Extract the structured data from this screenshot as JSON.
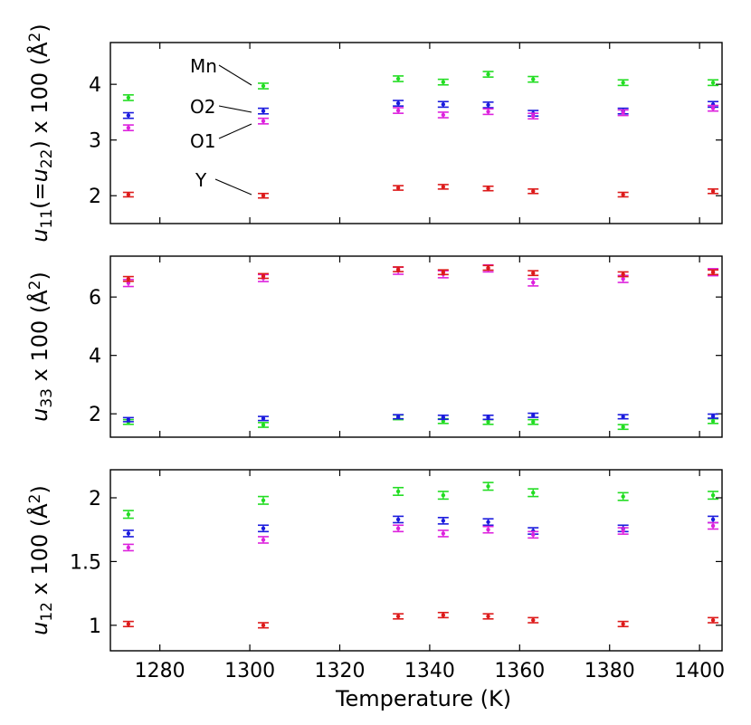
{
  "chart_data": {
    "type": "scatter",
    "shared_x": {
      "label": "Temperature (K)",
      "lim": [
        1269,
        1405
      ],
      "ticks": [
        1280,
        1300,
        1320,
        1340,
        1360,
        1380,
        1400
      ],
      "tick_labels": [
        "1280",
        "1300",
        "1320",
        "1340",
        "1360",
        "1380",
        "1400"
      ]
    },
    "x": [
      1273,
      1303,
      1333,
      1343,
      1353,
      1363,
      1383,
      1403
    ],
    "panels": [
      {
        "ylabel": {
          "base": "u",
          "sub1": "11",
          "mid": "(=",
          "base2": "u",
          "sub2": "22",
          "tail": ") x 100 (Å",
          "sup": "2",
          "end": ")"
        },
        "ylim": [
          1.5,
          4.75
        ],
        "yticks": [
          2,
          3,
          4
        ],
        "ytick_labels": [
          "2",
          "3",
          "4"
        ],
        "series": [
          {
            "name": "Mn",
            "color": "#22dd22",
            "values": [
              3.76,
              3.97,
              4.1,
              4.04,
              4.18,
              4.09,
              4.03,
              4.03
            ],
            "err": 0.05
          },
          {
            "name": "O2",
            "color": "#1a1add",
            "values": [
              3.44,
              3.52,
              3.66,
              3.64,
              3.63,
              3.48,
              3.52,
              3.64
            ],
            "err": 0.05
          },
          {
            "name": "O1",
            "color": "#dd22dd",
            "values": [
              3.22,
              3.34,
              3.53,
              3.45,
              3.51,
              3.43,
              3.49,
              3.57
            ],
            "err": 0.05
          },
          {
            "name": "Y",
            "color": "#dd1a1a",
            "values": [
              2.02,
              2.0,
              2.14,
              2.16,
              2.13,
              2.08,
              2.02,
              2.08
            ],
            "err": 0.04
          }
        ],
        "annotations": [
          "Mn",
          "O2",
          "O1",
          "Y"
        ]
      },
      {
        "ylabel": {
          "base": "u",
          "sub1": "33",
          "tail": " x 100 (Å",
          "sup": "2",
          "end": ")"
        },
        "ylim": [
          1.2,
          7.4
        ],
        "yticks": [
          2,
          4,
          6
        ],
        "ytick_labels": [
          "2",
          "4",
          "6"
        ],
        "series": [
          {
            "name": "Mn",
            "color": "#22dd22",
            "values": [
              1.72,
              1.62,
              1.88,
              1.75,
              1.72,
              1.72,
              1.55,
              1.75
            ],
            "err": 0.08
          },
          {
            "name": "O2",
            "color": "#1a1add",
            "values": [
              1.8,
              1.84,
              1.9,
              1.88,
              1.88,
              1.95,
              1.9,
              1.92
            ],
            "err": 0.07
          },
          {
            "name": "O1",
            "color": "#dd22dd",
            "values": [
              6.48,
              6.65,
              6.9,
              6.78,
              6.98,
              6.5,
              6.62,
              6.85
            ],
            "err": 0.12
          },
          {
            "name": "Y",
            "color": "#dd1a1a",
            "values": [
              6.62,
              6.72,
              6.95,
              6.85,
              7.0,
              6.82,
              6.78,
              6.85
            ],
            "err": 0.08
          }
        ]
      },
      {
        "ylabel": {
          "base": "u",
          "sub1": "12",
          "tail": " x 100 (Å",
          "sup": "2",
          "end": ")"
        },
        "ylim": [
          0.8,
          2.22
        ],
        "yticks": [
          1,
          1.5,
          2
        ],
        "ytick_labels": [
          "1",
          "1.5",
          "2"
        ],
        "series": [
          {
            "name": "Mn",
            "color": "#22dd22",
            "values": [
              1.87,
              1.98,
              2.05,
              2.02,
              2.09,
              2.04,
              2.01,
              2.02
            ],
            "err": 0.03
          },
          {
            "name": "O2",
            "color": "#1a1add",
            "values": [
              1.72,
              1.76,
              1.83,
              1.82,
              1.81,
              1.74,
              1.76,
              1.83
            ],
            "err": 0.025
          },
          {
            "name": "O1",
            "color": "#dd22dd",
            "values": [
              1.61,
              1.67,
              1.76,
              1.72,
              1.75,
              1.71,
              1.74,
              1.78
            ],
            "err": 0.025
          },
          {
            "name": "Y",
            "color": "#dd1a1a",
            "values": [
              1.01,
              1.0,
              1.07,
              1.08,
              1.07,
              1.04,
              1.01,
              1.04
            ],
            "err": 0.02
          }
        ]
      }
    ]
  }
}
